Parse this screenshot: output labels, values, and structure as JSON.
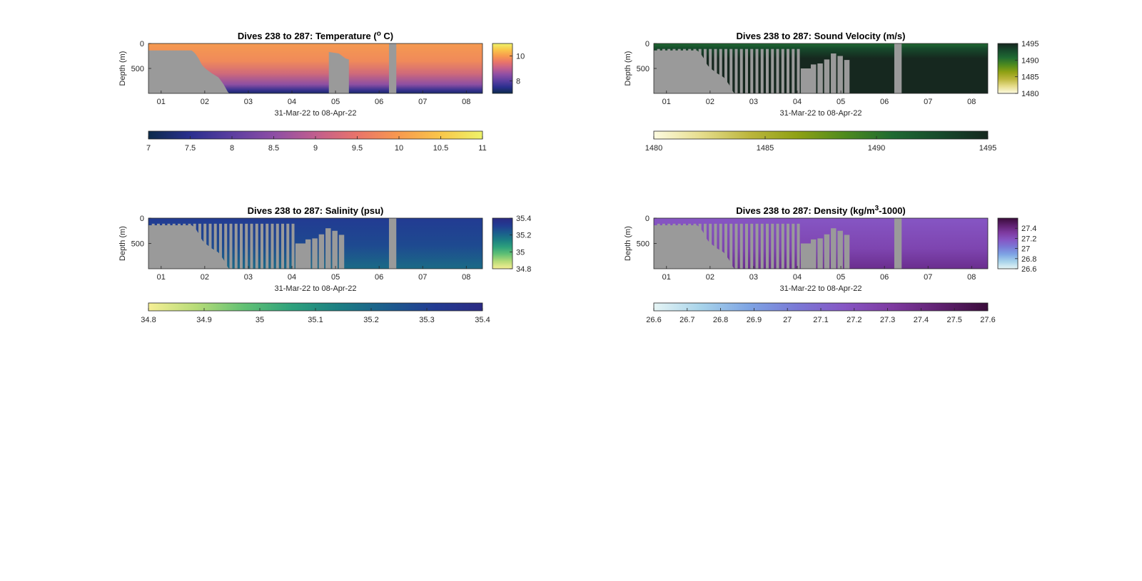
{
  "panels": [
    {
      "id": "temperature",
      "title": "Dives 238 to 287: Temperature (",
      "title_sup": "o",
      "title_tail": " C)",
      "ylabel": "Depth (m)",
      "xlabel": "31-Mar-22 to 08-Apr-22",
      "ytick_labels": [
        "0",
        "500"
      ],
      "xtick_labels": [
        "01",
        "02",
        "03",
        "04",
        "05",
        "06",
        "07",
        "08"
      ],
      "side_colorbar": {
        "ticks": [
          "10",
          "8"
        ],
        "range": [
          7,
          11
        ]
      },
      "bottom_colorbar": {
        "ticks": [
          "7",
          "7.5",
          "8",
          "8.5",
          "9",
          "9.5",
          "10",
          "10.5",
          "11"
        ]
      },
      "colormap": [
        "#0c2b4b",
        "#2a2f8e",
        "#5b3ea0",
        "#8d4ea5",
        "#c15e8e",
        "#e9746a",
        "#f89a4e",
        "#f9c74a",
        "#eef36a"
      ],
      "fill_style": "continuous"
    },
    {
      "id": "sound-velocity",
      "title": "Dives 238 to 287: Sound Velocity (m/s)",
      "title_sup": "",
      "title_tail": "",
      "ylabel": "Depth (m)",
      "xlabel": "31-Mar-22 to 08-Apr-22",
      "ytick_labels": [
        "0",
        "500"
      ],
      "xtick_labels": [
        "01",
        "02",
        "03",
        "04",
        "05",
        "06",
        "07",
        "08"
      ],
      "side_colorbar": {
        "ticks": [
          "1495",
          "1490",
          "1485",
          "1480"
        ],
        "range": [
          1480,
          1495
        ]
      },
      "bottom_colorbar": {
        "ticks": [
          "1480",
          "1485",
          "1490",
          "1495"
        ]
      },
      "colormap": [
        "#fdfbe0",
        "#e6dd8c",
        "#bcb63d",
        "#8fa114",
        "#4e8b1e",
        "#1f6a32",
        "#174a2c",
        "#16281f"
      ],
      "fill_style": "striped"
    },
    {
      "id": "salinity",
      "title": "Dives 238 to 287: Salinity (psu)",
      "title_sup": "",
      "title_tail": "",
      "ylabel": "Depth (m)",
      "xlabel": "31-Mar-22 to 08-Apr-22",
      "ytick_labels": [
        "0",
        "500"
      ],
      "xtick_labels": [
        "01",
        "02",
        "03",
        "04",
        "05",
        "06",
        "07",
        "08"
      ],
      "side_colorbar": {
        "ticks": [
          "35.4",
          "35.2",
          "35",
          "34.8"
        ],
        "range": [
          34.8,
          35.4
        ]
      },
      "bottom_colorbar": {
        "ticks": [
          "34.8",
          "34.9",
          "35",
          "35.1",
          "35.2",
          "35.3",
          "35.4"
        ]
      },
      "colormap": [
        "#f6ef95",
        "#b7dc78",
        "#62c174",
        "#2da17c",
        "#1b7e83",
        "#1b5c8d",
        "#223b92",
        "#2b2a83"
      ],
      "fill_style": "striped"
    },
    {
      "id": "density",
      "title": "Dives 238 to 287: Density (kg/m",
      "title_sup": "3",
      "title_tail": "-1000)",
      "ylabel": "Depth (m)",
      "xlabel": "31-Mar-22 to 08-Apr-22",
      "ytick_labels": [
        "0",
        "500"
      ],
      "xtick_labels": [
        "01",
        "02",
        "03",
        "04",
        "05",
        "06",
        "07",
        "08"
      ],
      "side_colorbar": {
        "ticks": [
          "27.4",
          "27.2",
          "27",
          "26.8",
          "26.6"
        ],
        "range": [
          26.6,
          27.6
        ]
      },
      "bottom_colorbar": {
        "ticks": [
          "26.6",
          "26.7",
          "26.8",
          "26.9",
          "27",
          "27.1",
          "27.2",
          "27.3",
          "27.4",
          "27.5",
          "27.6"
        ]
      },
      "colormap": [
        "#e6f5f5",
        "#a7d3ea",
        "#7ea4e4",
        "#7a79d6",
        "#8656c4",
        "#7e3aa0",
        "#5f2170",
        "#3a0c3a"
      ],
      "fill_style": "striped"
    }
  ],
  "chart_data": [
    {
      "type": "heatmap",
      "title": "Dives 238 to 287: Temperature (o C)",
      "xlabel": "31-Mar-22 to 08-Apr-22",
      "ylabel": "Depth (m)",
      "x_ticks": [
        "01",
        "02",
        "03",
        "04",
        "05",
        "06",
        "07",
        "08"
      ],
      "y_ticks": [
        0,
        500
      ],
      "ylim": [
        1000,
        0
      ],
      "colorbar_range": [
        7,
        11
      ],
      "colorbar_ticks": [
        7,
        7.5,
        8,
        8.5,
        9,
        9.5,
        10,
        10.5,
        11
      ],
      "series": [
        {
          "values": "surface ~10 °C, cooling to ~8 °C near 900 m"
        }
      ]
    },
    {
      "type": "heatmap",
      "title": "Dives 238 to 287: Sound Velocity (m/s)",
      "xlabel": "31-Mar-22 to 08-Apr-22",
      "ylabel": "Depth (m)",
      "x_ticks": [
        "01",
        "02",
        "03",
        "04",
        "05",
        "06",
        "07",
        "08"
      ],
      "y_ticks": [
        0,
        500
      ],
      "ylim": [
        1000,
        0
      ],
      "colorbar_range": [
        1480,
        1495
      ],
      "colorbar_ticks": [
        1480,
        1485,
        1490,
        1495
      ],
      "series": [
        {
          "values": "~1492 m/s near surface, ~1495 m/s at depth"
        }
      ]
    },
    {
      "type": "heatmap",
      "title": "Dives 238 to 287: Salinity (psu)",
      "xlabel": "31-Mar-22 to 08-Apr-22",
      "ylabel": "Depth (m)",
      "x_ticks": [
        "01",
        "02",
        "03",
        "04",
        "05",
        "06",
        "07",
        "08"
      ],
      "y_ticks": [
        0,
        500
      ],
      "ylim": [
        1000,
        0
      ],
      "colorbar_range": [
        34.8,
        35.4
      ],
      "colorbar_ticks": [
        34.8,
        34.9,
        35,
        35.1,
        35.2,
        35.3,
        35.4
      ],
      "series": [
        {
          "values": "~35.35 psu near surface, ~35.15 psu at depth"
        }
      ]
    },
    {
      "type": "heatmap",
      "title": "Dives 238 to 287: Density (kg/m3-1000)",
      "xlabel": "31-Mar-22 to 08-Apr-22",
      "ylabel": "Depth (m)",
      "x_ticks": [
        "01",
        "02",
        "03",
        "04",
        "05",
        "06",
        "07",
        "08"
      ],
      "y_ticks": [
        0,
        500
      ],
      "ylim": [
        1000,
        0
      ],
      "colorbar_range": [
        26.6,
        27.6
      ],
      "colorbar_ticks": [
        26.6,
        26.7,
        26.8,
        26.9,
        27,
        27.1,
        27.2,
        27.3,
        27.4,
        27.5,
        27.6
      ],
      "series": [
        {
          "values": "~27.15 near surface, ~27.3 at depth"
        }
      ]
    }
  ]
}
